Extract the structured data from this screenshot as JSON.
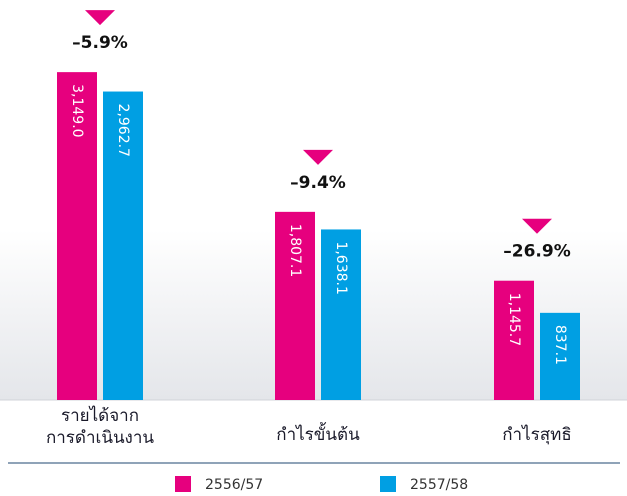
{
  "chart_data": {
    "type": "bar",
    "categories": [
      "รายได้จาก\nการดำเนินงาน",
      "กำไรขั้นต้น",
      "กำไรสุทธิ"
    ],
    "series": [
      {
        "name": "2556/57",
        "color": "#e6007e",
        "values": [
          3149.0,
          1807.1,
          1145.7
        ],
        "value_labels": [
          "3,149.0",
          "1,807.1",
          "1,145.7"
        ]
      },
      {
        "name": "2557/58",
        "color": "#009fe3",
        "values": [
          2962.7,
          1638.1,
          837.1
        ],
        "value_labels": [
          "2,962.7",
          "1,638.1",
          "837.1"
        ]
      }
    ],
    "annotations": [
      "–5.9%",
      "–9.4%",
      "–26.9%"
    ],
    "ylim": [
      0,
      3400
    ]
  }
}
